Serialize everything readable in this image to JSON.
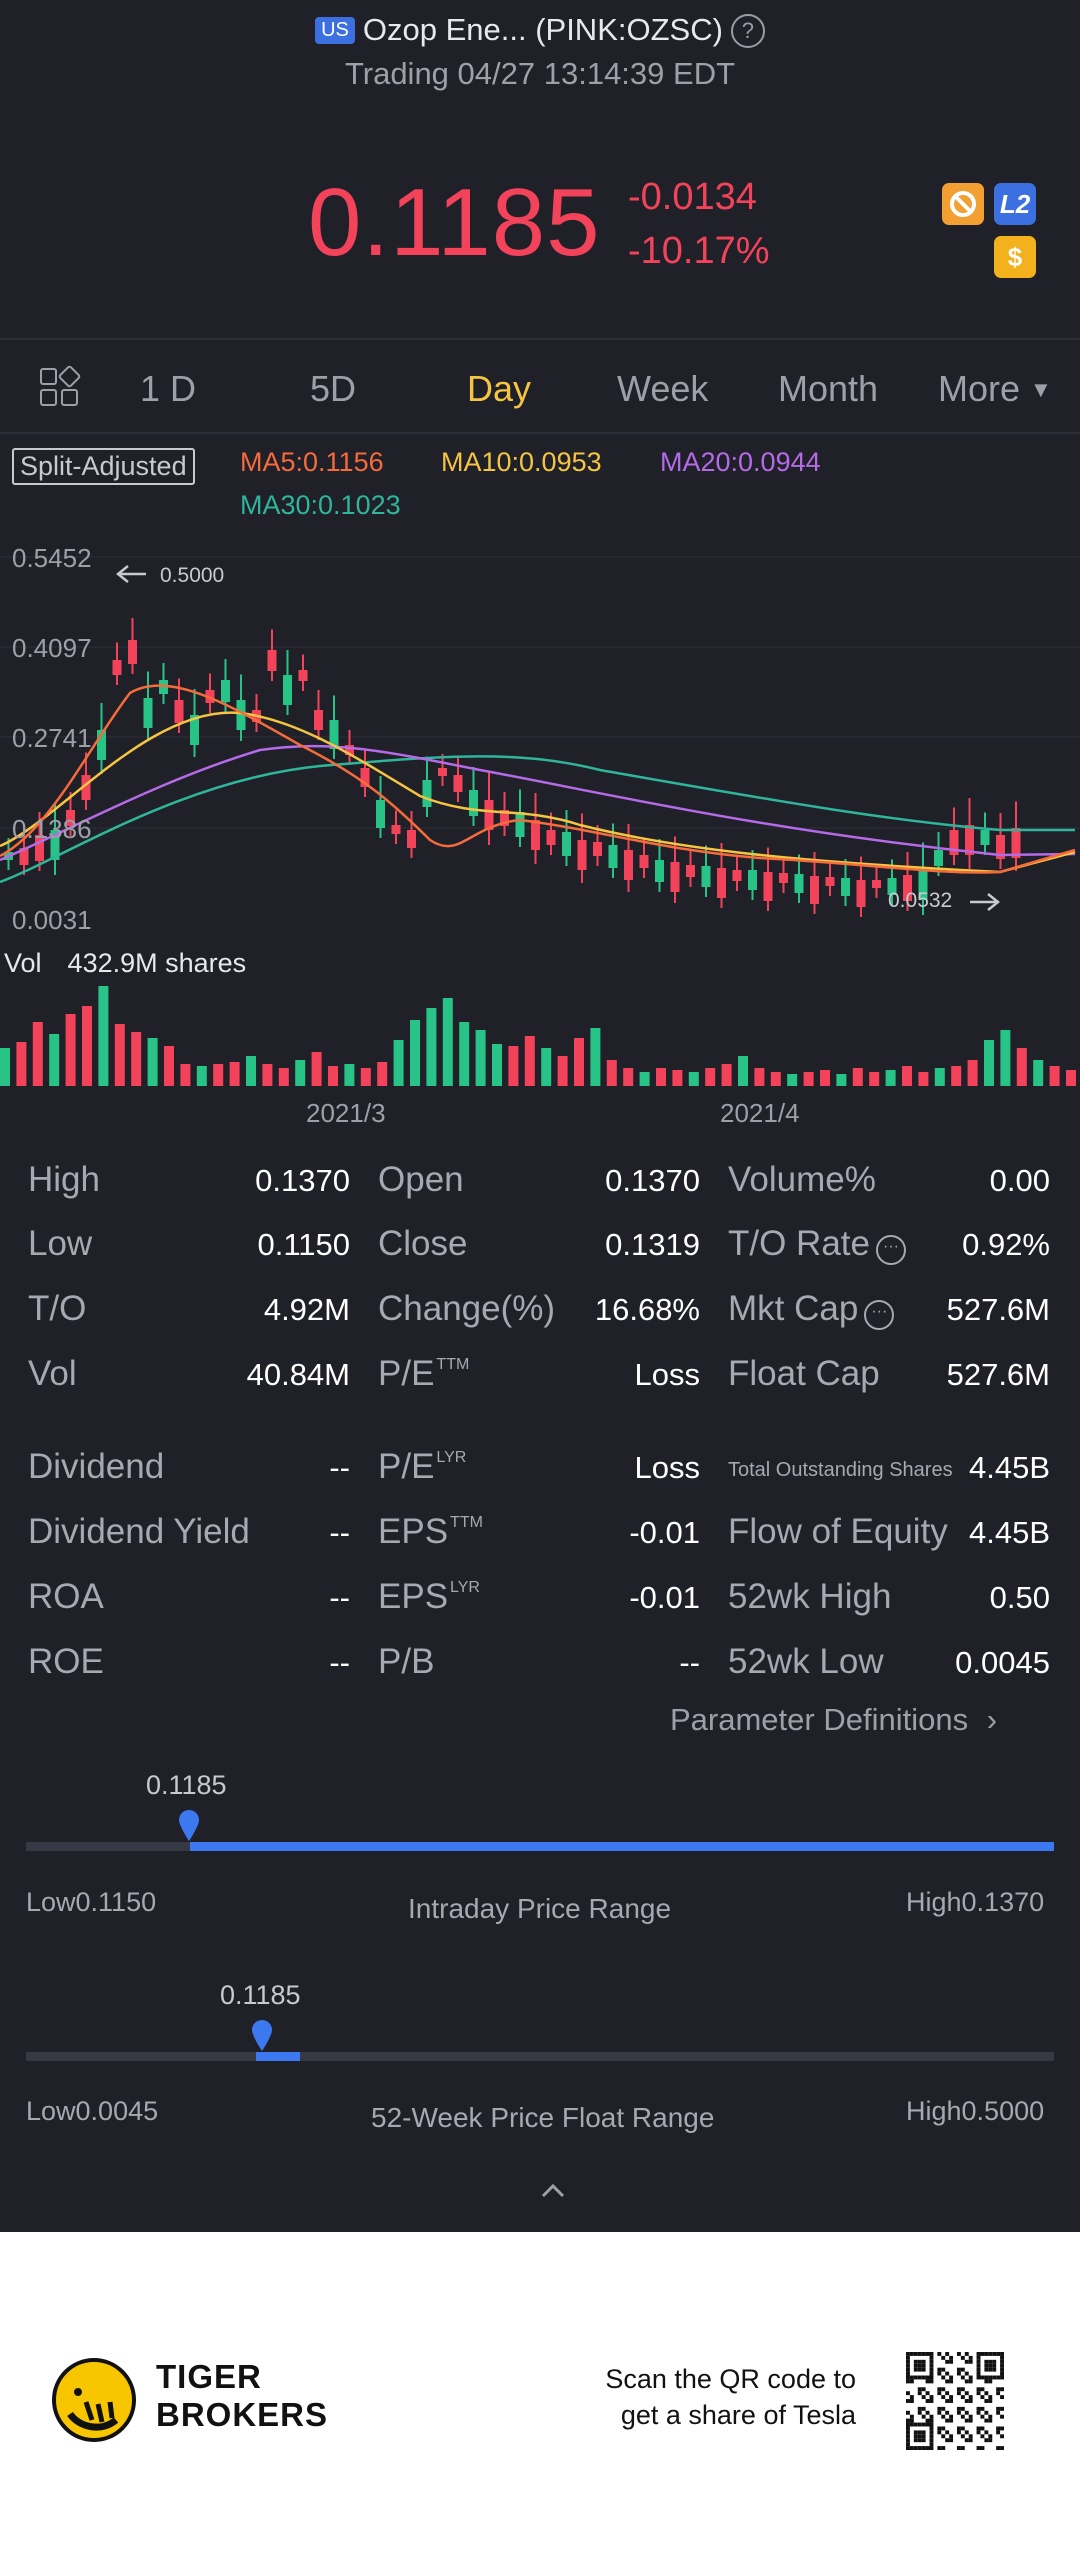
{
  "header": {
    "market_badge": "US",
    "title": "Ozop Ene... (PINK:OZSC)",
    "status": "Trading 04/27 13:14:39 EDT",
    "price": "0.1185",
    "change": "-0.0134",
    "change_pct": "-10.17%",
    "icons": [
      "no-entry-icon",
      "l2-icon",
      "dollar-icon"
    ],
    "l2_label": "L2",
    "dollar_label": "$"
  },
  "tabs": [
    "1 D",
    "5D",
    "Day",
    "Week",
    "Month",
    "More"
  ],
  "active_tab": "Day",
  "chart": {
    "split_label": "Split-Adjusted",
    "ma": [
      {
        "label": "MA5:0.1156",
        "color": "#f56b3b"
      },
      {
        "label": "MA10:0.0953",
        "color": "#f5c542"
      },
      {
        "label": "MA20:0.0944",
        "color": "#b56ae8"
      },
      {
        "label": "MA30:0.1023",
        "color": "#2fb59a"
      }
    ],
    "y_ticks": [
      "0.5452",
      "0.4097",
      "0.2741",
      "0.1386",
      "0.0031"
    ],
    "max_note": "0.5000",
    "min_note": "0.0532",
    "vol_label": "Vol",
    "vol_value": "432.9M shares",
    "x_dates": [
      "2021/3",
      "2021/4"
    ],
    "up_color": "#28c386",
    "down_color": "#f2435b"
  },
  "stats": {
    "col1": [
      {
        "label": "High",
        "value": "0.1370"
      },
      {
        "label": "Low",
        "value": "0.1150"
      },
      {
        "label": "T/O",
        "value": "4.92M"
      },
      {
        "label": "Vol",
        "value": "40.84M"
      },
      {
        "label": "Dividend",
        "value": "--"
      },
      {
        "label": "Dividend Yield",
        "value": "--"
      },
      {
        "label": "ROA",
        "value": "--"
      },
      {
        "label": "ROE",
        "value": "--"
      }
    ],
    "col2": [
      {
        "label": "Open",
        "sup": "",
        "value": "0.1370"
      },
      {
        "label": "Close",
        "sup": "",
        "value": "0.1319"
      },
      {
        "label": "Change(%)",
        "sup": "",
        "value": "16.68%"
      },
      {
        "label": "P/E",
        "sup": "TTM",
        "value": "Loss"
      },
      {
        "label": "P/E",
        "sup": "LYR",
        "value": "Loss"
      },
      {
        "label": "EPS",
        "sup": "TTM",
        "value": "-0.01"
      },
      {
        "label": "EPS",
        "sup": "LYR",
        "value": "-0.01"
      },
      {
        "label": "P/B",
        "sup": "",
        "value": "--"
      }
    ],
    "col3": [
      {
        "label": "Volume%",
        "value": "0.00"
      },
      {
        "label": "T/O Rate",
        "value": "0.92%"
      },
      {
        "label": "Mkt Cap",
        "value": "527.6M"
      },
      {
        "label": "Float Cap",
        "value": "527.6M"
      },
      {
        "label": "Total Outstanding Shares",
        "value": "4.45B"
      },
      {
        "label": "Flow of Equity",
        "value": "4.45B"
      },
      {
        "label": "52wk High",
        "value": "0.50"
      },
      {
        "label": "52wk Low",
        "value": "0.0045"
      }
    ],
    "param_definitions": "Parameter Definitions"
  },
  "ranges": {
    "intraday": {
      "current": "0.1185",
      "low": "Low0.1150",
      "high": "High0.1370",
      "title": "Intraday Price Range",
      "position": 0.16
    },
    "week52": {
      "current": "0.1185",
      "low": "Low0.0045",
      "high": "High0.5000",
      "title": "52-Week Price Float Range",
      "position": 0.23
    }
  },
  "footer": {
    "brand_line1": "TIGER",
    "brand_line2": "BROKERS",
    "scan_line1": "Scan the QR code to",
    "scan_line2": "get a share of Tesla"
  }
}
